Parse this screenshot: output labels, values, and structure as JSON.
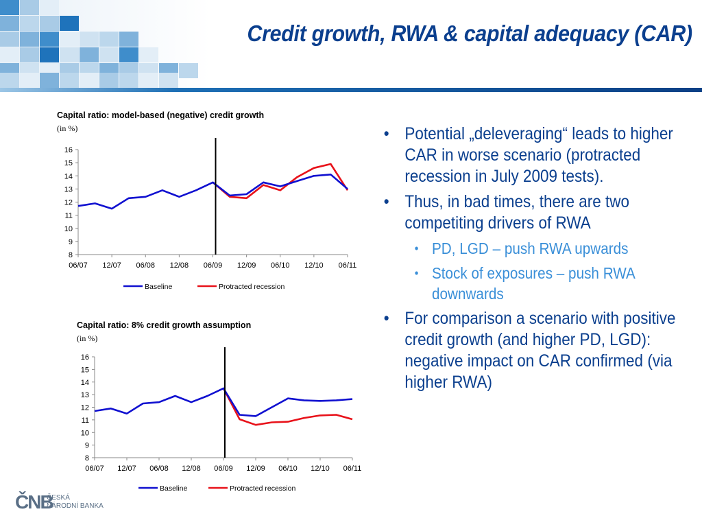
{
  "title": "Credit growth, RWA & capital adequacy (CAR)",
  "colors": {
    "baseline": "#1010d0",
    "protracted": "#e8121a",
    "title": "#0b3f8e",
    "bullet_main": "#0b3f8e",
    "bullet_sub": "#3a8fd8"
  },
  "chart_data": [
    {
      "type": "line",
      "title": "Capital ratio:  model-based (negative) credit growth",
      "unit": "(in %)",
      "x_tick_labels": [
        "06/07",
        "12/07",
        "06/08",
        "12/08",
        "06/09",
        "12/09",
        "06/10",
        "12/10",
        "06/11"
      ],
      "y_tick_labels": [
        "8",
        "9",
        "10",
        "11",
        "12",
        "13",
        "14",
        "15",
        "16"
      ],
      "ylim": [
        8,
        16
      ],
      "x": [
        0,
        1,
        2,
        3,
        4,
        5,
        6,
        7,
        8,
        9,
        10,
        11,
        12,
        13,
        14,
        15,
        16
      ],
      "vertical_line_at": 8,
      "series": [
        {
          "name": "Baseline",
          "color": "#1010d0",
          "values": [
            11.7,
            11.9,
            11.5,
            12.3,
            12.4,
            12.9,
            12.4,
            12.9,
            13.5,
            12.5,
            12.6,
            13.5,
            13.2,
            13.6,
            14.0,
            14.1,
            13.0
          ]
        },
        {
          "name": "Protracted recession",
          "color": "#e8121a",
          "values": [
            null,
            null,
            null,
            null,
            null,
            null,
            null,
            null,
            13.5,
            12.4,
            12.3,
            13.3,
            12.9,
            13.9,
            14.6,
            14.9,
            12.9
          ]
        }
      ],
      "legend": "bottom"
    },
    {
      "type": "line",
      "title": "Capital ratio:  8% credit growth assumption",
      "unit": "(in %)",
      "x_tick_labels": [
        "06/07",
        "12/07",
        "06/08",
        "12/08",
        "06/09",
        "12/09",
        "06/10",
        "12/10",
        "06/11"
      ],
      "y_tick_labels": [
        "8",
        "9",
        "10",
        "11",
        "12",
        "13",
        "14",
        "15",
        "16"
      ],
      "ylim": [
        8,
        16
      ],
      "x": [
        0,
        1,
        2,
        3,
        4,
        5,
        6,
        7,
        8,
        9,
        10,
        11,
        12,
        13,
        14,
        15,
        16
      ],
      "vertical_line_at": 8,
      "series": [
        {
          "name": "Baseline",
          "color": "#1010d0",
          "values": [
            11.7,
            11.9,
            11.5,
            12.3,
            12.4,
            12.9,
            12.4,
            12.9,
            13.5,
            11.4,
            11.3,
            12.0,
            12.7,
            12.55,
            12.5,
            12.55,
            12.65
          ]
        },
        {
          "name": "Protracted recession",
          "color": "#e8121a",
          "values": [
            null,
            null,
            null,
            null,
            null,
            null,
            null,
            null,
            13.5,
            11.05,
            10.6,
            10.8,
            10.85,
            11.15,
            11.35,
            11.4,
            11.05
          ]
        }
      ],
      "legend": "bottom"
    }
  ],
  "bullets": [
    {
      "level": 1,
      "text": "Potential „deleveraging“ leads to higher CAR in worse scenario (protracted recession in July 2009 tests)."
    },
    {
      "level": 1,
      "text": "Thus, in bad times, there are two competiting drivers of RWA"
    },
    {
      "level": 2,
      "text": "PD, LGD – push RWA upwards"
    },
    {
      "level": 2,
      "text": "Stock of exposures – push RWA downwards"
    },
    {
      "level": 1,
      "text": "For comparison a scenario with positive credit growth (and higher PD, LGD): negative impact on CAR confirmed (via higher RWA)"
    }
  ],
  "logo": {
    "mark": "ČNB",
    "line1": "ČESKÁ",
    "line2": "NÁRODNÍ BANKA"
  }
}
